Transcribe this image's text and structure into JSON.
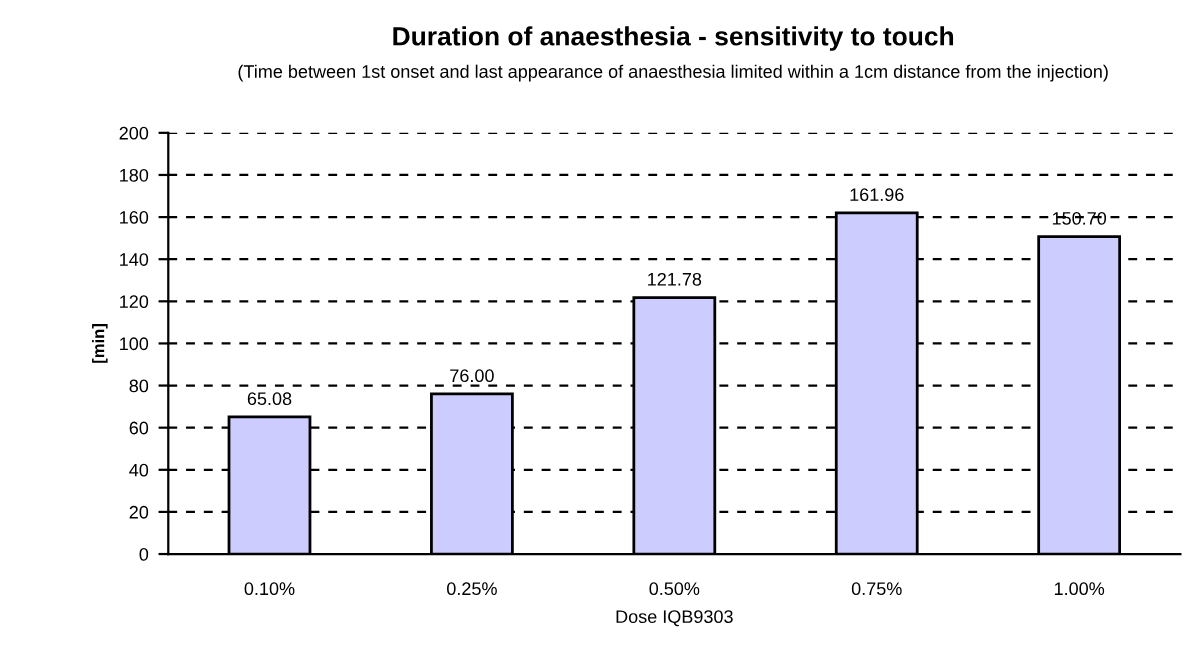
{
  "chart_data": {
    "type": "bar",
    "title": "Duration of anaesthesia - sensitivity to touch",
    "subtitle": "(Time between 1st onset and last appearance of anaesthesia limited within a 1cm distance from the injection)",
    "xlabel": "Dose IQB9303",
    "ylabel": "[min]",
    "categories": [
      "0.10%",
      "0.25%",
      "0.50%",
      "0.75%",
      "1.00%"
    ],
    "values": [
      65.08,
      76.0,
      121.78,
      161.96,
      150.7
    ],
    "value_labels": [
      "65.08",
      "76.00",
      "121.78",
      "161.96",
      "150.70"
    ],
    "color": "#ccccff",
    "ylim": [
      0,
      200
    ],
    "yticks": [
      0,
      20,
      40,
      60,
      80,
      100,
      120,
      140,
      160,
      180,
      200
    ],
    "grid": "y"
  }
}
